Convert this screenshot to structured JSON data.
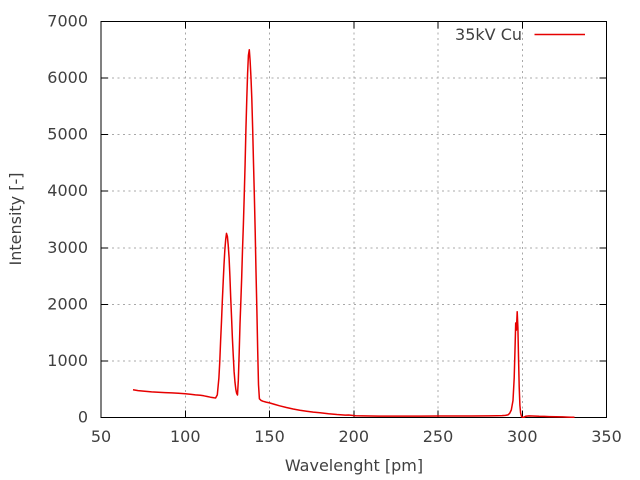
{
  "colors": {
    "background": "#ffffff",
    "border": "#000000",
    "grid": "#a8a8a8",
    "text": "#404040",
    "series_red": "#e60000"
  },
  "legend": {
    "label": "35kV Cu"
  },
  "chart_data": {
    "type": "line",
    "title": "",
    "xlabel": "Wavelenght [pm]",
    "ylabel": "Intensity [-]",
    "xlim": [
      50,
      350
    ],
    "ylim": [
      0,
      7000
    ],
    "x_ticks": [
      50,
      100,
      150,
      200,
      250,
      300,
      350
    ],
    "y_ticks": [
      0,
      1000,
      2000,
      3000,
      4000,
      5000,
      6000,
      7000
    ],
    "grid": true,
    "grid_style": "dotted",
    "legend_position": "top-right-inside",
    "series": [
      {
        "name": "35kV Cu",
        "color": "#e60000",
        "points": [
          [
            69,
            490
          ],
          [
            72,
            476
          ],
          [
            76,
            463
          ],
          [
            80,
            453
          ],
          [
            84,
            446
          ],
          [
            88,
            440
          ],
          [
            92,
            434
          ],
          [
            96,
            428
          ],
          [
            100,
            420
          ],
          [
            103,
            410
          ],
          [
            106,
            400
          ],
          [
            109,
            392
          ],
          [
            111,
            384
          ],
          [
            113,
            371
          ],
          [
            115,
            358
          ],
          [
            117,
            349
          ],
          [
            118,
            345
          ],
          [
            119,
            400
          ],
          [
            120,
            700
          ],
          [
            120.5,
            1000
          ],
          [
            121,
            1350
          ],
          [
            121.5,
            1700
          ],
          [
            122,
            2050
          ],
          [
            122.5,
            2400
          ],
          [
            123,
            2700
          ],
          [
            123.5,
            2950
          ],
          [
            124,
            3150
          ],
          [
            124.5,
            3255
          ],
          [
            125,
            3200
          ],
          [
            125.5,
            3050
          ],
          [
            126,
            2820
          ],
          [
            126.5,
            2500
          ],
          [
            127,
            2120
          ],
          [
            127.5,
            1750
          ],
          [
            128,
            1400
          ],
          [
            128.5,
            1080
          ],
          [
            129,
            810
          ],
          [
            129.5,
            620
          ],
          [
            130,
            500
          ],
          [
            130.5,
            430
          ],
          [
            131,
            398
          ],
          [
            131.5,
            650
          ],
          [
            132,
            1150
          ],
          [
            132.5,
            1650
          ],
          [
            133,
            2080
          ],
          [
            133.5,
            2480
          ],
          [
            134,
            2960
          ],
          [
            134.5,
            3420
          ],
          [
            135,
            3900
          ],
          [
            135.5,
            4480
          ],
          [
            136,
            5080
          ],
          [
            136.5,
            5640
          ],
          [
            137,
            6080
          ],
          [
            137.5,
            6400
          ],
          [
            138,
            6500
          ],
          [
            138.5,
            6310
          ],
          [
            139,
            6000
          ],
          [
            139.5,
            5640
          ],
          [
            140,
            5080
          ],
          [
            140.5,
            4500
          ],
          [
            141,
            3960
          ],
          [
            141.5,
            3280
          ],
          [
            142,
            2580
          ],
          [
            142.5,
            1880
          ],
          [
            143,
            1180
          ],
          [
            143.5,
            580
          ],
          [
            144,
            330
          ],
          [
            145,
            302
          ],
          [
            146,
            288
          ],
          [
            148,
            272
          ],
          [
            150,
            258
          ],
          [
            153,
            231
          ],
          [
            156,
            207
          ],
          [
            160,
            177
          ],
          [
            164,
            151
          ],
          [
            168,
            129
          ],
          [
            172,
            111
          ],
          [
            176,
            96
          ],
          [
            180,
            84
          ],
          [
            185,
            67
          ],
          [
            190,
            53
          ],
          [
            195,
            42
          ],
          [
            197,
            45
          ],
          [
            199,
            38
          ],
          [
            201,
            30
          ],
          [
            205,
            28
          ],
          [
            210,
            26
          ],
          [
            215,
            25
          ],
          [
            220,
            24
          ],
          [
            230,
            24
          ],
          [
            240,
            25
          ],
          [
            250,
            26
          ],
          [
            260,
            26
          ],
          [
            270,
            27
          ],
          [
            280,
            28
          ],
          [
            285,
            31
          ],
          [
            288,
            34
          ],
          [
            290,
            38
          ],
          [
            291.5,
            46
          ],
          [
            292.5,
            72
          ],
          [
            293.5,
            132
          ],
          [
            294.5,
            300
          ],
          [
            295.2,
            700
          ],
          [
            295.7,
            1200
          ],
          [
            296.1,
            1670
          ],
          [
            296.5,
            1545
          ],
          [
            297,
            1870
          ],
          [
            297.4,
            1590
          ],
          [
            297.8,
            1080
          ],
          [
            298.2,
            540
          ],
          [
            298.6,
            215
          ],
          [
            299,
            78
          ],
          [
            299.5,
            24
          ],
          [
            300,
            4
          ],
          [
            301,
            4
          ],
          [
            302,
            22
          ],
          [
            304,
            28
          ],
          [
            306,
            27
          ],
          [
            308,
            25
          ],
          [
            310,
            22
          ],
          [
            313,
            19
          ],
          [
            316,
            16
          ],
          [
            320,
            13
          ],
          [
            324,
            10
          ],
          [
            327,
            7
          ],
          [
            329,
            4
          ],
          [
            331,
            3
          ]
        ]
      }
    ]
  }
}
